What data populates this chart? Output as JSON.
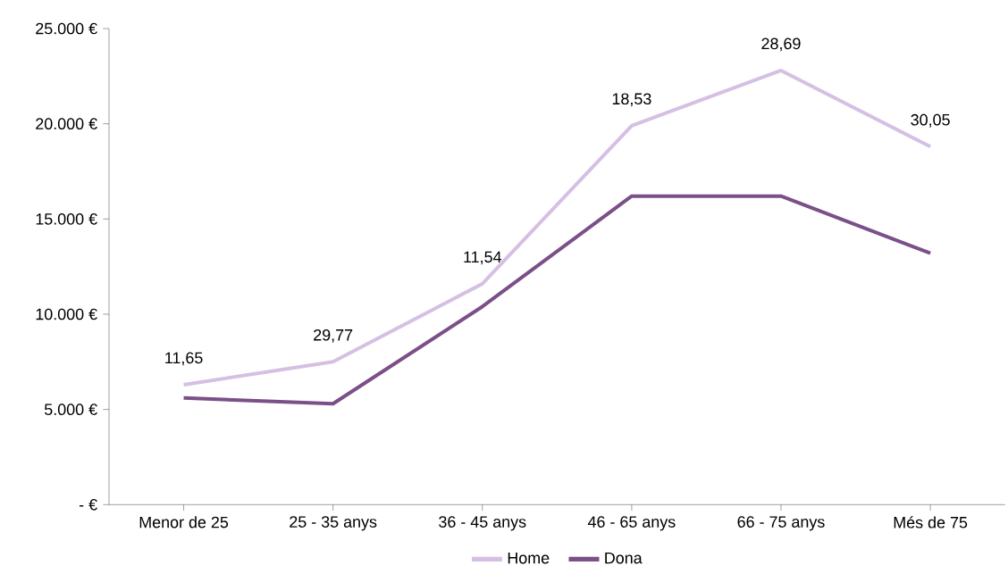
{
  "chart_data": {
    "type": "line",
    "categories": [
      "Menor de 25",
      "25 - 35 anys",
      "36 - 45 anys",
      "46 - 65 anys",
      "66 - 75 anys",
      "Més de 75"
    ],
    "series": [
      {
        "name": "Home",
        "color": "#d5c0e4",
        "values": [
          6300,
          7500,
          11600,
          19900,
          22800,
          18800
        ]
      },
      {
        "name": "Dona",
        "color": "#7b4f88",
        "values": [
          5600,
          5300,
          10400,
          16200,
          16200,
          13200
        ]
      }
    ],
    "ylim": [
      0,
      25000
    ],
    "yticks": [
      {
        "value": 0,
        "label": "- €"
      },
      {
        "value": 5000,
        "label": "5.000 €"
      },
      {
        "value": 10000,
        "label": "10.000 €"
      },
      {
        "value": 15000,
        "label": "15.000 €"
      },
      {
        "value": 20000,
        "label": "20.000 €"
      },
      {
        "value": 25000,
        "label": "25.000 €"
      }
    ],
    "annotations": [
      "11,65",
      "29,77",
      "11,54",
      "18,53",
      "28,69",
      "30,05"
    ],
    "grid": false,
    "legend": "bottom",
    "marker": "none",
    "line_style": "solid"
  }
}
